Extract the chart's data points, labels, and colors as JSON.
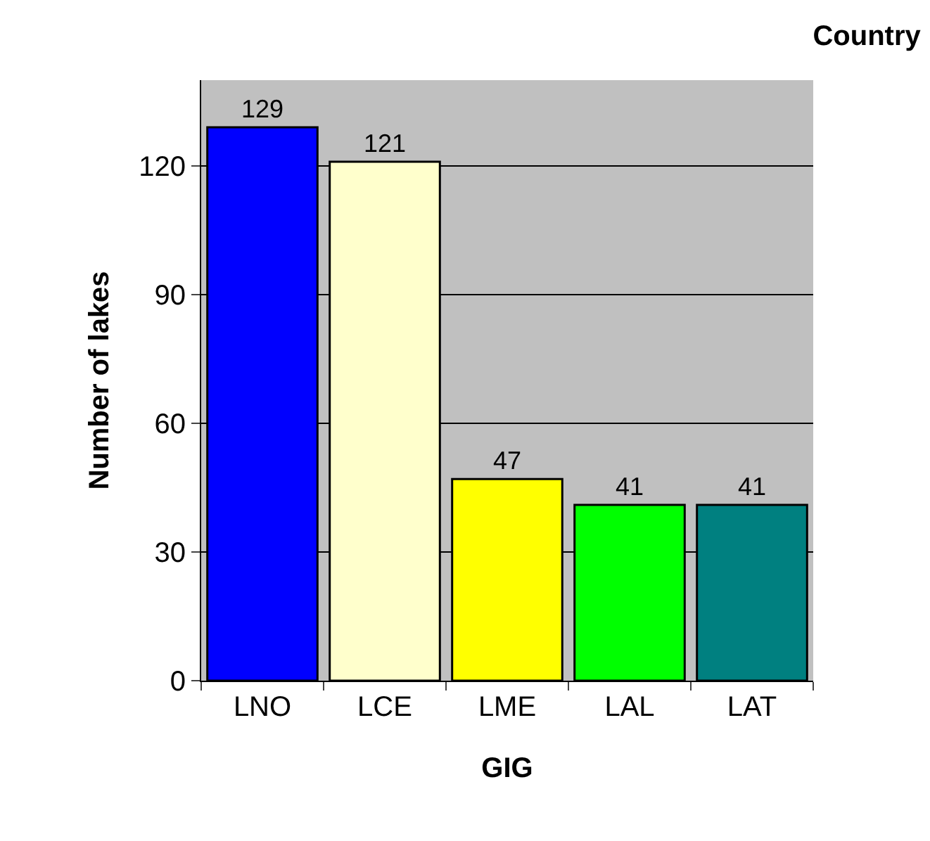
{
  "chart_data": {
    "type": "bar",
    "title": "Country",
    "xlabel": "GIG",
    "ylabel": "Number of lakes",
    "categories": [
      "LNO",
      "LCE",
      "LME",
      "LAL",
      "LAT"
    ],
    "values": [
      129,
      121,
      47,
      41,
      41
    ],
    "colors": [
      "#0000ff",
      "#ffffcc",
      "#ffff00",
      "#00ff00",
      "#008080"
    ],
    "ylim": [
      0,
      140
    ],
    "yticks": [
      0,
      30,
      60,
      90,
      120
    ],
    "grid": "y",
    "data_labels": true
  }
}
